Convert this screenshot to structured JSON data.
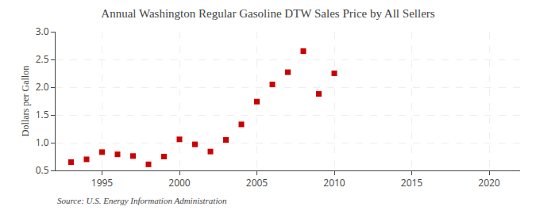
{
  "chart_data": {
    "type": "scatter",
    "title": "Annual Washington Regular Gasoline DTW Sales Price by All Sellers",
    "ylabel": "Dollars per Gallon",
    "annotations": [
      "Source: U.S. Energy Information Administration"
    ],
    "x": [
      1993,
      1994,
      1995,
      1996,
      1997,
      1998,
      1999,
      2000,
      2001,
      2002,
      2003,
      2004,
      2005,
      2006,
      2007,
      2008,
      2009,
      2010
    ],
    "values": [
      0.65,
      0.7,
      0.83,
      0.79,
      0.76,
      0.61,
      0.75,
      1.06,
      0.97,
      0.84,
      1.05,
      1.33,
      1.74,
      2.05,
      2.27,
      2.65,
      1.88,
      2.25
    ],
    "color": "#cc0000",
    "marker": "square",
    "xlim": [
      1992,
      2022
    ],
    "xticks": [
      1995,
      2000,
      2005,
      2010,
      2015,
      2020
    ],
    "ylim": [
      0.5,
      3.0
    ],
    "yticks": [
      0.5,
      {
        "value": 1.0,
        "label": "1.0"
      },
      1.5,
      {
        "value": 2.0,
        "label": "2.0"
      },
      2.5,
      {
        "value": 3.0,
        "label": "3.0"
      }
    ],
    "grid": true
  }
}
